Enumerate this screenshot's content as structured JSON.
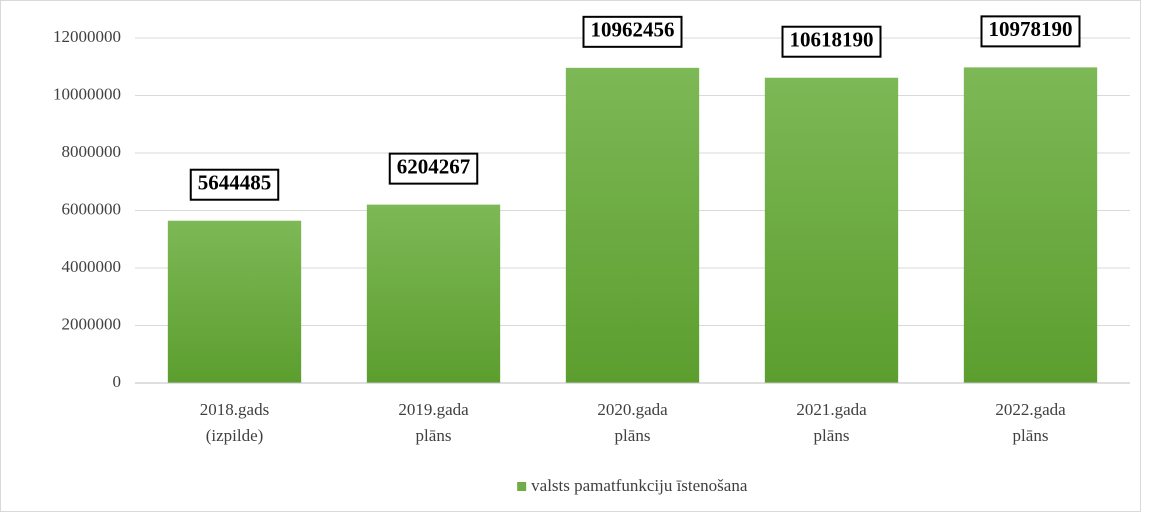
{
  "chart_data": {
    "type": "bar",
    "categories": [
      "2018.gads (izpilde)",
      "2019.gada plāns",
      "2020.gada plāns",
      "2021.gada plāns",
      "2022.gada plāns"
    ],
    "series": [
      {
        "name": "valsts pamatfunkciju īstenošana",
        "color": "#70ad47",
        "values": [
          5644485,
          6204267,
          10962456,
          10618190,
          10978190
        ]
      }
    ],
    "ylim": [
      0,
      12000000
    ],
    "yticks": [
      0,
      2000000,
      4000000,
      6000000,
      8000000,
      10000000,
      12000000
    ],
    "grid": true,
    "legend": "bottom"
  }
}
